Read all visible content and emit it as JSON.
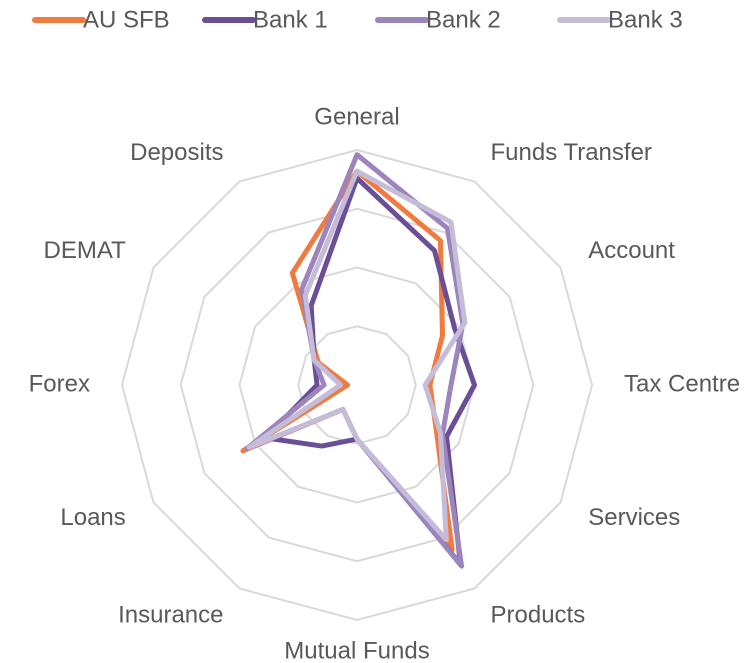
{
  "chart_data": {
    "type": "radar",
    "categories": [
      "General",
      "Funds Transfer",
      "Account",
      "Tax Centre",
      "Services",
      "Products",
      "Mutual Funds",
      "Insurance",
      "Loans",
      "Forex",
      "DEMAT",
      "Deposits"
    ],
    "series": [
      {
        "name": "AU SFB",
        "color": "#f07b3f",
        "values": [
          91,
          71,
          42,
          31,
          39,
          81,
          23,
          12,
          56,
          4,
          19,
          55
        ]
      },
      {
        "name": "Bank 1",
        "color": "#6a4f96",
        "values": [
          88,
          66,
          48,
          50,
          44,
          88,
          23,
          30,
          45,
          17,
          21,
          39
        ]
      },
      {
        "name": "Bank 2",
        "color": "#9c85bd",
        "values": [
          98,
          77,
          52,
          40,
          42,
          89,
          23,
          12,
          54,
          14,
          21,
          47
        ]
      },
      {
        "name": "Bank 3",
        "color": "#c5bcd9",
        "values": [
          91,
          80,
          53,
          29,
          41,
          76,
          23,
          12,
          53,
          7,
          21,
          44
        ]
      }
    ],
    "ylim": [
      0,
      100
    ],
    "yticks": [
      0,
      25,
      50,
      75,
      100
    ],
    "grid": true,
    "legend": "top"
  }
}
